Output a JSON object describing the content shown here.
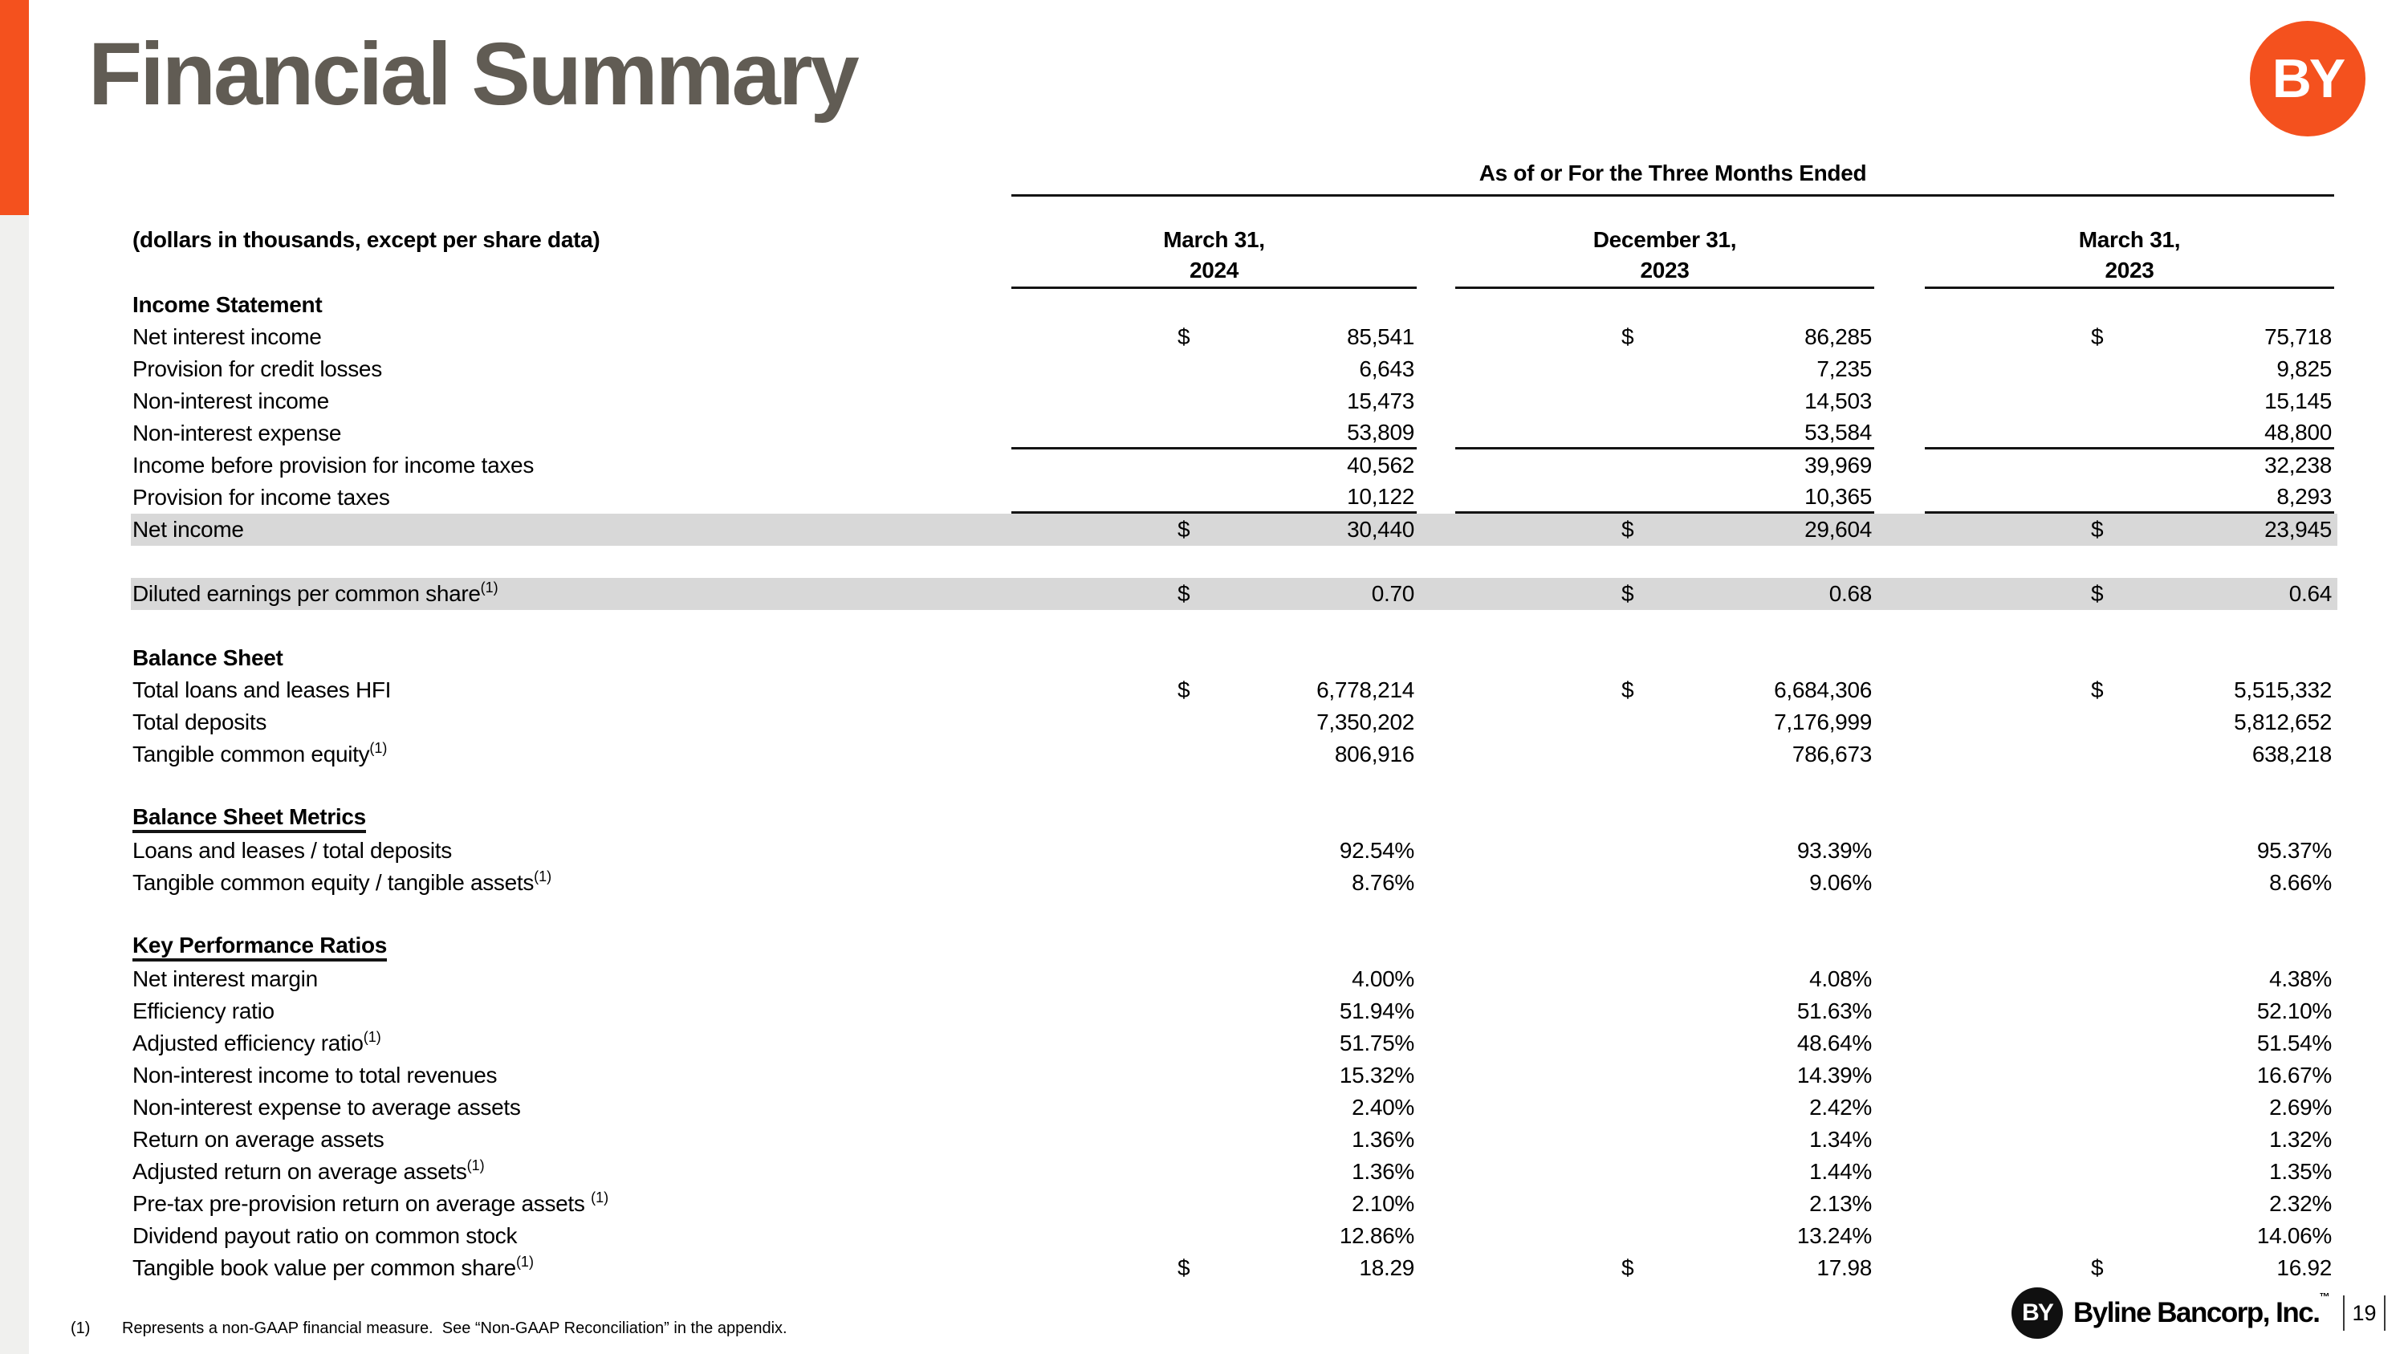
{
  "page": {
    "title": "Financial Summary",
    "logo_text": "BY",
    "page_number": "19",
    "footer_brand": "Byline Bancorp, Inc.",
    "footer_brand_tm": "™",
    "footnote": {
      "marker": "(1)",
      "text": "Represents a non-GAAP financial measure.  See “Non-GAAP Reconciliation” in the appendix."
    }
  },
  "colors": {
    "accent_orange": "#F4511E",
    "title_gray": "#615C54",
    "row_highlight": "#D8D8D8",
    "side_strip_gray": "#F0F0EE",
    "rule_black": "#141414",
    "logo_black": "#101010"
  },
  "table": {
    "units_note": "(dollars in thousands, except per share data)",
    "spanner": "As of or For the Three Months Ended",
    "columns": [
      {
        "line1": "March 31,",
        "line2": "2024"
      },
      {
        "line1": "December 31,",
        "line2": "2023"
      },
      {
        "line1": "March 31,",
        "line2": "2023"
      }
    ],
    "rows": [
      {
        "type": "section",
        "label": "Income Statement"
      },
      {
        "type": "data",
        "label": "Net interest income",
        "currency": "$",
        "values": [
          "85,541",
          "86,285",
          "75,718"
        ]
      },
      {
        "type": "data",
        "label": "Provision for credit losses",
        "values": [
          "6,643",
          "7,235",
          "9,825"
        ]
      },
      {
        "type": "data",
        "label": "Non-interest income",
        "values": [
          "15,473",
          "14,503",
          "15,145"
        ]
      },
      {
        "type": "data",
        "label": "Non-interest expense",
        "rule_below": true,
        "values": [
          "53,809",
          "53,584",
          "48,800"
        ]
      },
      {
        "type": "data",
        "label": "Income before provision for income taxes",
        "values": [
          "40,562",
          "39,969",
          "32,238"
        ]
      },
      {
        "type": "data",
        "label": "Provision for income taxes",
        "rule_below": true,
        "values": [
          "10,122",
          "10,365",
          "8,293"
        ]
      },
      {
        "type": "data",
        "label": "Net income",
        "currency": "$",
        "highlight": true,
        "values": [
          "30,440",
          "29,604",
          "23,945"
        ]
      },
      {
        "type": "spacer"
      },
      {
        "type": "data",
        "label": "Diluted earnings per common share",
        "sup": "(1)",
        "currency": "$",
        "highlight": true,
        "values": [
          "0.70",
          "0.68",
          "0.64"
        ]
      },
      {
        "type": "spacer"
      },
      {
        "type": "section",
        "label": "Balance Sheet"
      },
      {
        "type": "data",
        "label": "Total loans and leases HFI",
        "currency": "$",
        "values": [
          "6,778,214",
          "6,684,306",
          "5,515,332"
        ]
      },
      {
        "type": "data",
        "label": "Total deposits",
        "values": [
          "7,350,202",
          "7,176,999",
          "5,812,652"
        ]
      },
      {
        "type": "data",
        "label": "Tangible common equity",
        "sup": "(1)",
        "values": [
          "806,916",
          "786,673",
          "638,218"
        ]
      },
      {
        "type": "spacer"
      },
      {
        "type": "section-underline",
        "label": "Balance Sheet Metrics"
      },
      {
        "type": "data",
        "label": "Loans and leases / total deposits",
        "values": [
          "92.54%",
          "93.39%",
          "95.37%"
        ]
      },
      {
        "type": "data",
        "label": "Tangible common equity / tangible assets",
        "sup": "(1)",
        "values": [
          "8.76%",
          "9.06%",
          "8.66%"
        ]
      },
      {
        "type": "spacer"
      },
      {
        "type": "section-underline",
        "label": "Key Performance Ratios"
      },
      {
        "type": "data",
        "label": "Net interest margin",
        "values": [
          "4.00%",
          "4.08%",
          "4.38%"
        ]
      },
      {
        "type": "data",
        "label": "Efficiency ratio",
        "values": [
          "51.94%",
          "51.63%",
          "52.10%"
        ]
      },
      {
        "type": "data",
        "label": "Adjusted efficiency ratio",
        "sup": "(1)",
        "values": [
          "51.75%",
          "48.64%",
          "51.54%"
        ]
      },
      {
        "type": "data",
        "label": "Non-interest income to total revenues",
        "values": [
          "15.32%",
          "14.39%",
          "16.67%"
        ]
      },
      {
        "type": "data",
        "label": "Non-interest expense to average assets",
        "values": [
          "2.40%",
          "2.42%",
          "2.69%"
        ]
      },
      {
        "type": "data",
        "label": "Return on average assets",
        "values": [
          "1.36%",
          "1.34%",
          "1.32%"
        ]
      },
      {
        "type": "data",
        "label": "Adjusted return on average assets",
        "sup": "(1)",
        "values": [
          "1.36%",
          "1.44%",
          "1.35%"
        ]
      },
      {
        "type": "data",
        "label": "Pre-tax pre-provision return on average assets ",
        "sup": "(1)",
        "values": [
          "2.10%",
          "2.13%",
          "2.32%"
        ]
      },
      {
        "type": "data",
        "label": "Dividend payout ratio on common stock",
        "values": [
          "12.86%",
          "13.24%",
          "14.06%"
        ]
      },
      {
        "type": "data",
        "label": "Tangible book value per common share",
        "sup": "(1)",
        "currency": "$",
        "values": [
          "18.29",
          "17.98",
          "16.92"
        ]
      }
    ]
  }
}
